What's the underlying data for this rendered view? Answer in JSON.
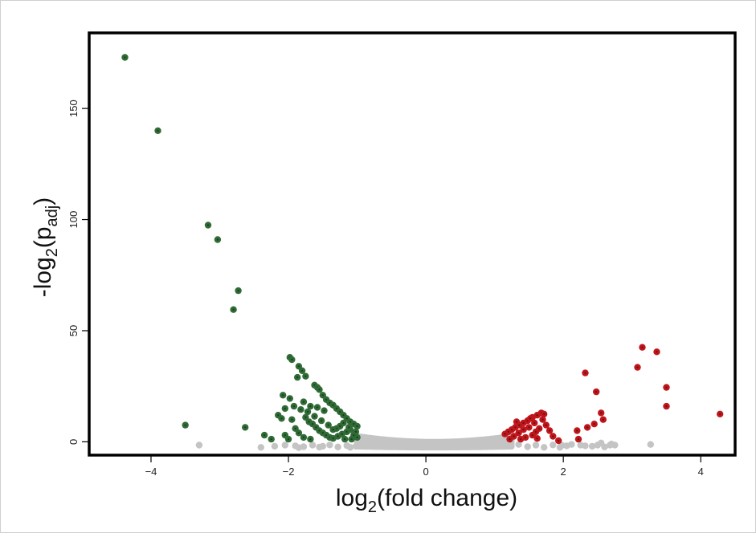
{
  "chart_data": {
    "type": "scatter",
    "title": "",
    "xlabel": {
      "main": "log",
      "sub": "2",
      "rest": "(fold change)"
    },
    "ylabel": {
      "main": "-log",
      "sub": "2",
      "mid": "(p",
      "sub2": "adj",
      "rest": ")"
    },
    "xlim": [
      -4.9,
      4.5
    ],
    "ylim": [
      -6,
      184
    ],
    "xticks": [
      -4,
      -2,
      0,
      2,
      4
    ],
    "yticks": [
      0,
      50,
      100,
      150
    ],
    "grid": false,
    "colors": {
      "down": "#2f6b35",
      "up": "#c0151b",
      "ns": "#c4c4c4",
      "frame": "#000000"
    },
    "series": [
      {
        "key": "down",
        "points": [
          [
            -4.38,
            173
          ],
          [
            -3.9,
            140
          ],
          [
            -3.17,
            97.5
          ],
          [
            -3.03,
            91
          ],
          [
            -2.73,
            68
          ],
          [
            -2.8,
            59.5
          ],
          [
            -3.5,
            7.5
          ],
          [
            -2.63,
            6.5
          ],
          [
            -1.98,
            38
          ],
          [
            -1.95,
            37
          ],
          [
            -1.85,
            34
          ],
          [
            -1.8,
            32
          ],
          [
            -1.75,
            29.5
          ],
          [
            -1.87,
            29
          ],
          [
            -1.62,
            25.5
          ],
          [
            -1.58,
            24.5
          ],
          [
            -1.55,
            23.5
          ],
          [
            -1.5,
            21
          ],
          [
            -1.45,
            19
          ],
          [
            -1.4,
            17.5
          ],
          [
            -1.35,
            16.5
          ],
          [
            -1.3,
            15
          ],
          [
            -1.25,
            13.5
          ],
          [
            -1.2,
            12
          ],
          [
            -1.15,
            10.5
          ],
          [
            -1.1,
            9
          ],
          [
            -1.05,
            8
          ],
          [
            -1.0,
            7
          ],
          [
            -2.08,
            21
          ],
          [
            -2.15,
            12
          ],
          [
            -2.1,
            10.5
          ],
          [
            -1.98,
            19.5
          ],
          [
            -1.75,
            11
          ],
          [
            -1.7,
            9
          ],
          [
            -1.65,
            8
          ],
          [
            -1.6,
            6.5
          ],
          [
            -1.55,
            5
          ],
          [
            -1.5,
            4
          ],
          [
            -1.45,
            3
          ],
          [
            -1.4,
            2
          ],
          [
            -1.35,
            1.5
          ],
          [
            -1.28,
            2.5
          ],
          [
            -1.22,
            3.5
          ],
          [
            -1.15,
            4.5
          ],
          [
            -1.1,
            5.5
          ],
          [
            -1.05,
            3
          ],
          [
            -1.0,
            2
          ],
          [
            -1.08,
            1.2
          ],
          [
            -1.18,
            1.2
          ],
          [
            -1.3,
            6
          ],
          [
            -1.42,
            7.5
          ],
          [
            -1.52,
            9.5
          ],
          [
            -1.62,
            11.5
          ],
          [
            -1.72,
            13.5
          ],
          [
            -1.82,
            14.5
          ],
          [
            -1.95,
            10
          ],
          [
            -1.9,
            6
          ],
          [
            -1.85,
            4
          ],
          [
            -1.78,
            2
          ],
          [
            -1.68,
            1.2
          ],
          [
            -2.05,
            3
          ],
          [
            -2.25,
            1.2
          ],
          [
            -2.0,
            1.2
          ],
          [
            -1.2,
            8.5
          ],
          [
            -1.25,
            7
          ],
          [
            -1.35,
            5.5
          ],
          [
            -1.48,
            14
          ],
          [
            -1.58,
            15.5
          ],
          [
            -1.68,
            16
          ],
          [
            -1.78,
            18
          ],
          [
            -1.92,
            16
          ],
          [
            -2.05,
            15
          ],
          [
            -1.12,
            6.5
          ],
          [
            -1.02,
            4.5
          ],
          [
            -2.35,
            3
          ]
        ]
      },
      {
        "key": "up",
        "points": [
          [
            4.28,
            12.5
          ],
          [
            3.5,
            16
          ],
          [
            3.5,
            24.5
          ],
          [
            3.36,
            40.5
          ],
          [
            3.15,
            42.5
          ],
          [
            3.08,
            33.5
          ],
          [
            2.32,
            31
          ],
          [
            2.48,
            22.5
          ],
          [
            2.58,
            10
          ],
          [
            2.55,
            13
          ],
          [
            2.45,
            8
          ],
          [
            2.35,
            6.5
          ],
          [
            2.2,
            5
          ],
          [
            2.22,
            1.2
          ],
          [
            1.93,
            0.5
          ],
          [
            1.68,
            13
          ],
          [
            1.62,
            12
          ],
          [
            1.55,
            11
          ],
          [
            1.48,
            9.5
          ],
          [
            1.42,
            8.5
          ],
          [
            1.36,
            7.5
          ],
          [
            1.3,
            6.5
          ],
          [
            1.25,
            5.5
          ],
          [
            1.2,
            4.5
          ],
          [
            1.15,
            3.5
          ],
          [
            1.7,
            10
          ],
          [
            1.75,
            7.5
          ],
          [
            1.65,
            6
          ],
          [
            1.6,
            4.5
          ],
          [
            1.55,
            3
          ],
          [
            1.45,
            2
          ],
          [
            1.38,
            1.2
          ],
          [
            1.28,
            2.5
          ],
          [
            1.22,
            1.2
          ],
          [
            1.5,
            6.5
          ],
          [
            1.58,
            8.5
          ],
          [
            1.35,
            4
          ],
          [
            1.42,
            5.5
          ],
          [
            1.52,
            10.5
          ],
          [
            1.72,
            12.5
          ],
          [
            1.8,
            5
          ],
          [
            1.85,
            2.5
          ],
          [
            1.62,
            1.5
          ],
          [
            1.32,
            9
          ]
        ]
      },
      {
        "key": "ns",
        "points": [
          [
            -3.3,
            -1.5
          ],
          [
            -2.4,
            -2.5
          ],
          [
            -2.2,
            -2
          ],
          [
            -2.05,
            -1.5
          ],
          [
            -1.9,
            -1.8
          ],
          [
            -1.78,
            -2.2
          ],
          [
            -1.65,
            -1.5
          ],
          [
            -1.5,
            -2.0
          ],
          [
            -1.4,
            -1.4
          ],
          [
            -1.28,
            -2.3
          ],
          [
            -1.15,
            -1.7
          ],
          [
            -1.02,
            -2.0
          ],
          [
            2.75,
            -1.5
          ],
          [
            2.68,
            -1.5
          ],
          [
            2.6,
            -2.3
          ],
          [
            2.5,
            -1.5
          ],
          [
            2.42,
            -2.0
          ],
          [
            2.32,
            -1.8
          ],
          [
            2.12,
            -1.2
          ],
          [
            2.05,
            -1.8
          ],
          [
            1.95,
            -2.5
          ],
          [
            3.27,
            -1.2
          ],
          [
            2.7,
            -1.0
          ],
          [
            2.55,
            -0.5
          ],
          [
            2.25,
            -1.5
          ],
          [
            1.98,
            -1.6
          ],
          [
            1.1,
            -1.5
          ],
          [
            1.22,
            -2.0
          ],
          [
            1.35,
            -1.2
          ],
          [
            1.48,
            -2.2
          ],
          [
            1.6,
            -1.5
          ],
          [
            1.72,
            -2.5
          ],
          [
            1.85,
            -1.4
          ],
          [
            -0.95,
            -1.2
          ],
          [
            -1.1,
            -2.5
          ],
          [
            -1.85,
            -2.6
          ],
          [
            -1.55,
            -2.4
          ]
        ]
      }
    ]
  }
}
